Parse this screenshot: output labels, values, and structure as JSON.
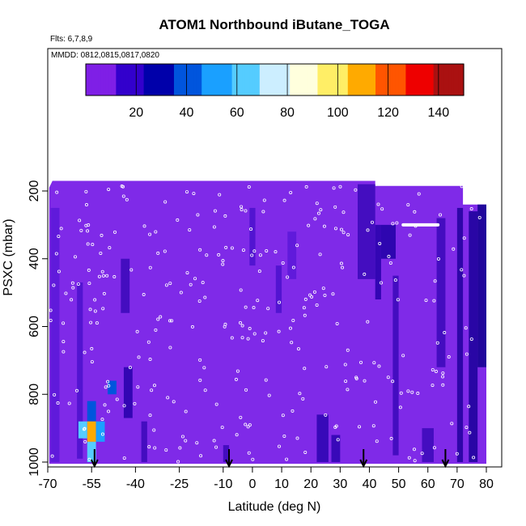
{
  "chart_data": {
    "type": "heatmap",
    "title": "ATOM1 Northbound iButane_TOGA",
    "flights_note": "Flts: 6,7,8,9",
    "dates_note": "MMDD: 0812,0815,0817,0820",
    "xlabel": "Latitude (deg N)",
    "ylabel": "PSXC (mbar)",
    "xlim": [
      -70,
      80
    ],
    "ylim": [
      1010,
      160
    ],
    "y_reversed": true,
    "x_ticks": [
      -70,
      -55,
      -40,
      -25,
      -10,
      0,
      10,
      20,
      30,
      40,
      50,
      60,
      70,
      80
    ],
    "x_tick_labels": [
      "-70",
      "-55",
      "-40",
      "-25",
      "-10",
      "0",
      "10",
      "20",
      "30",
      "40",
      "50",
      "60",
      "70",
      "80"
    ],
    "y_ticks": [
      200,
      400,
      600,
      800,
      1000
    ],
    "y_tick_labels": [
      "200",
      "400",
      "600",
      "800",
      "1000"
    ],
    "colorbar": {
      "range": [
        0,
        150
      ],
      "ticks": [
        20,
        40,
        60,
        80,
        100,
        120,
        140
      ],
      "tick_labels": [
        "20",
        "40",
        "60",
        "80",
        "100",
        "120",
        "140"
      ],
      "colors": [
        "#7f1fe6",
        "#3300cc",
        "#0000aa",
        "#0055dd",
        "#1aa0ff",
        "#55ccff",
        "#cceeff",
        "#ffffdd",
        "#ffee66",
        "#ffaa00",
        "#ff5500",
        "#ee0000",
        "#aa1111"
      ]
    },
    "background_value": 4,
    "background_color": "#7f2ae8",
    "high_cells": [
      {
        "lat": -55,
        "p1": 820,
        "p2": 880,
        "value": 40
      },
      {
        "lat": -55,
        "p1": 880,
        "p2": 940,
        "value": 110
      },
      {
        "lat": -58,
        "p1": 880,
        "p2": 930,
        "value": 60
      },
      {
        "lat": -52,
        "p1": 880,
        "p2": 940,
        "value": 55
      },
      {
        "lat": -55,
        "p1": 940,
        "p2": 1000,
        "value": 60
      },
      {
        "lat": -48,
        "p1": 760,
        "p2": 800,
        "value": 40
      }
    ],
    "arrows_lat": [
      -54,
      -8,
      38,
      66
    ]
  }
}
